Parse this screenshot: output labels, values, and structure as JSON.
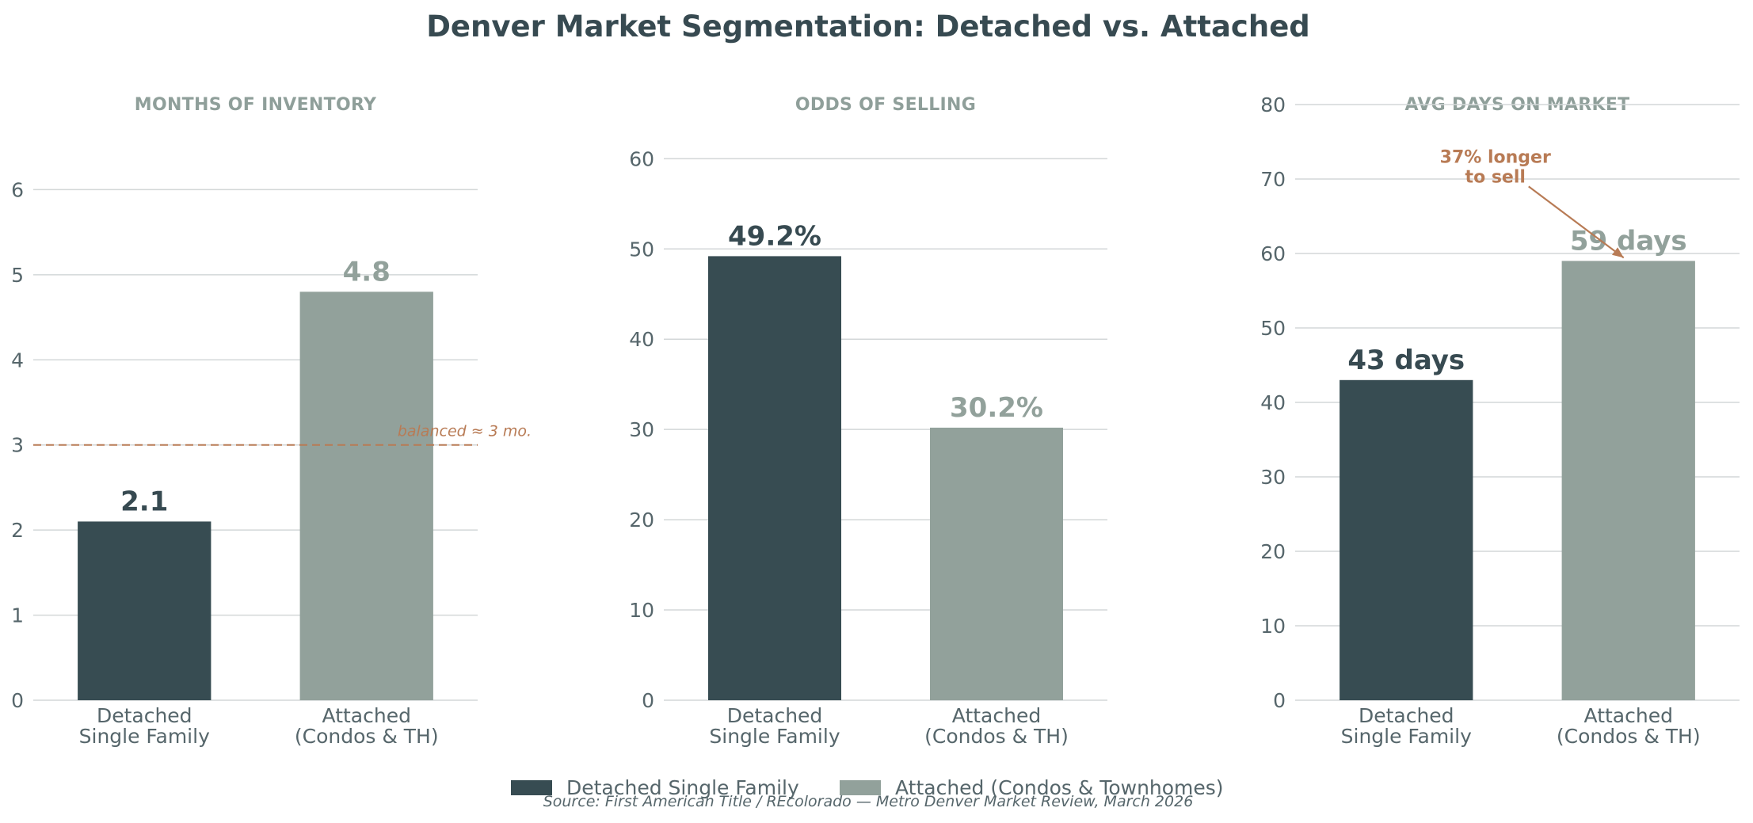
{
  "title": "Denver Market Segmentation: Detached vs. Attached",
  "source": "Source: First American Title / REcolorado — Metro Denver Market Review, March 2026",
  "colors": {
    "detached": "#374c52",
    "attached": "#92a19b",
    "accent": "#b87b55",
    "text": "#374a51"
  },
  "legend": {
    "position": "bottom-center",
    "items": [
      {
        "label": "Detached Single Family",
        "color": "#374c52"
      },
      {
        "label": "Attached (Condos & Townhomes)",
        "color": "#92a19b"
      }
    ]
  },
  "chart_data": [
    {
      "type": "bar",
      "title": "MONTHS OF INVENTORY",
      "categories": [
        "Detached\nSingle Family",
        "Attached\n(Condos & TH)"
      ],
      "values": [
        2.1,
        4.8
      ],
      "value_labels": [
        "2.1",
        "4.8"
      ],
      "ylim": [
        0,
        7
      ],
      "yticks": [
        0,
        1,
        2,
        3,
        4,
        5,
        6
      ],
      "grid": true,
      "reference_line": {
        "y": 3,
        "label": "balanced ≈ 3 mo."
      }
    },
    {
      "type": "bar",
      "title": "ODDS OF SELLING",
      "categories": [
        "Detached\nSingle Family",
        "Attached\n(Condos & TH)"
      ],
      "values": [
        49.2,
        30.2
      ],
      "value_labels": [
        "49.2%",
        "30.2%"
      ],
      "ylim": [
        0,
        66
      ],
      "yticks": [
        0,
        10,
        20,
        30,
        40,
        50,
        60
      ],
      "grid": true
    },
    {
      "type": "bar",
      "title": "AVG DAYS ON MARKET",
      "categories": [
        "Detached\nSingle Family",
        "Attached\n(Condos & TH)"
      ],
      "values": [
        43,
        59
      ],
      "value_labels": [
        "43 days",
        "59 days"
      ],
      "ylim": [
        0,
        80
      ],
      "yticks": [
        0,
        10,
        20,
        30,
        40,
        50,
        60,
        70,
        80
      ],
      "grid": true,
      "annotation": {
        "text": "37% longer\nto sell",
        "target_category": 1,
        "target_value": 59
      }
    }
  ]
}
